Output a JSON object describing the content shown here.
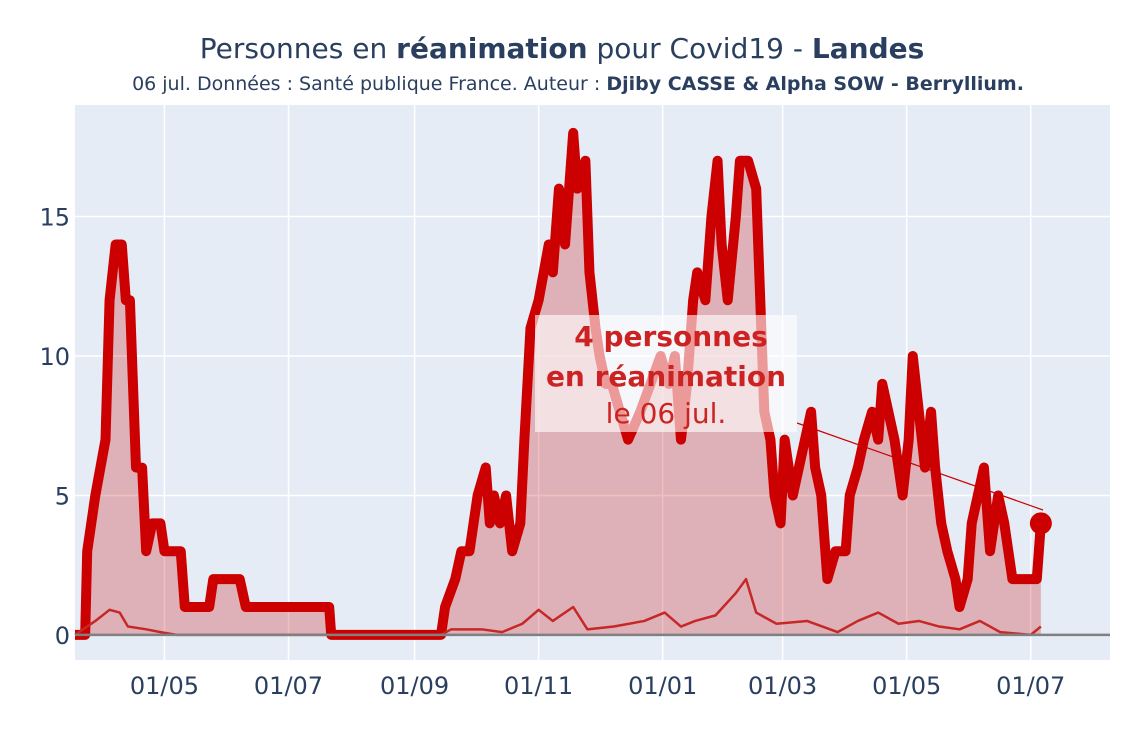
{
  "chart_data": {
    "type": "line",
    "title_parts": [
      "Personnes en ",
      "réanimation",
      " pour Covid19 - ",
      "Landes"
    ],
    "subtitle_parts": [
      "06 jul. Données : Santé publique France. Auteur : ",
      "Djiby CASSE & Alpha SOW - Berryllium."
    ],
    "annotation": [
      "4 personnes",
      "en réanimation",
      "le 06 jul."
    ],
    "xlim": [
      0,
      509
    ],
    "ylim": [
      -0.9,
      19
    ],
    "xticks": [
      {
        "value": 44,
        "label": "01/05"
      },
      {
        "value": 105,
        "label": "01/07"
      },
      {
        "value": 167,
        "label": "01/09"
      },
      {
        "value": 228,
        "label": "01/11"
      },
      {
        "value": 289,
        "label": "01/01"
      },
      {
        "value": 348,
        "label": "01/03"
      },
      {
        "value": 409,
        "label": "01/05"
      },
      {
        "value": 470,
        "label": "01/07"
      }
    ],
    "yticks": [
      0,
      5,
      10,
      15
    ],
    "grid": true,
    "series": [
      {
        "color": "#cc0000",
        "x": [
          0,
          5,
          6,
          10,
          15,
          17,
          20,
          23,
          25,
          27,
          30,
          33,
          35,
          38,
          42,
          44,
          52,
          54,
          66,
          68,
          81,
          84,
          125,
          126,
          180,
          182,
          187,
          190,
          194,
          198,
          202,
          204,
          206,
          209,
          212,
          215,
          219,
          221,
          224,
          228,
          233,
          235,
          238,
          241,
          245,
          247,
          251,
          253,
          256,
          258,
          261,
          264,
          268,
          272,
          278,
          283,
          288,
          292,
          295,
          298,
          301,
          304,
          306,
          310,
          313,
          316,
          318,
          321,
          325,
          327,
          331,
          335,
          337,
          339,
          342,
          344,
          347,
          349,
          353,
          356,
          359,
          362,
          364,
          367,
          370,
          374,
          379,
          381,
          385,
          388,
          392,
          395,
          397,
          400,
          403,
          407,
          410,
          412,
          415,
          418,
          421,
          423,
          426,
          429,
          433,
          435,
          439,
          441,
          444,
          447,
          450,
          454,
          457,
          461,
          473,
          475
        ],
        "values": [
          0,
          0,
          3,
          5,
          7,
          12,
          14,
          14,
          12,
          12,
          6,
          6,
          3,
          4,
          4,
          3,
          3,
          1,
          1,
          2,
          2,
          1,
          1,
          0,
          0,
          1,
          2,
          3,
          3,
          5,
          6,
          4,
          5,
          4,
          5,
          3,
          4,
          7,
          11,
          12,
          14,
          13,
          16,
          14,
          18,
          16,
          17,
          13,
          11,
          10,
          9,
          9,
          8,
          7,
          8,
          9,
          10,
          9,
          10,
          7,
          9,
          12,
          13,
          12,
          15,
          17,
          14,
          12,
          15,
          17,
          17,
          16,
          12,
          8,
          7,
          5,
          4,
          7,
          5,
          6,
          7,
          8,
          6,
          5,
          2,
          3,
          3,
          5,
          6,
          7,
          8,
          7,
          9,
          8,
          7,
          5,
          7,
          10,
          8,
          6,
          8,
          6,
          4,
          3,
          2,
          1,
          2,
          4,
          5,
          6,
          3,
          5,
          4,
          2,
          2,
          4
        ]
      },
      {
        "color": "#c62828",
        "x": [
          0,
          10,
          17,
          22,
          26,
          35,
          42,
          50,
          180,
          185,
          200,
          210,
          220,
          228,
          235,
          245,
          252,
          265,
          280,
          290,
          298,
          305,
          315,
          325,
          330,
          335,
          345,
          360,
          375,
          385,
          395,
          405,
          415,
          425,
          435,
          445,
          455,
          470,
          475
        ],
        "values": [
          0,
          0.5,
          0.9,
          0.8,
          0.3,
          0.2,
          0.1,
          0,
          0,
          0.2,
          0.2,
          0.1,
          0.4,
          0.9,
          0.5,
          1.0,
          0.2,
          0.3,
          0.5,
          0.8,
          0.3,
          0.5,
          0.7,
          1.5,
          2.0,
          0.8,
          0.4,
          0.5,
          0.1,
          0.5,
          0.8,
          0.4,
          0.5,
          0.3,
          0.2,
          0.5,
          0.1,
          0,
          0.3
        ]
      }
    ]
  }
}
